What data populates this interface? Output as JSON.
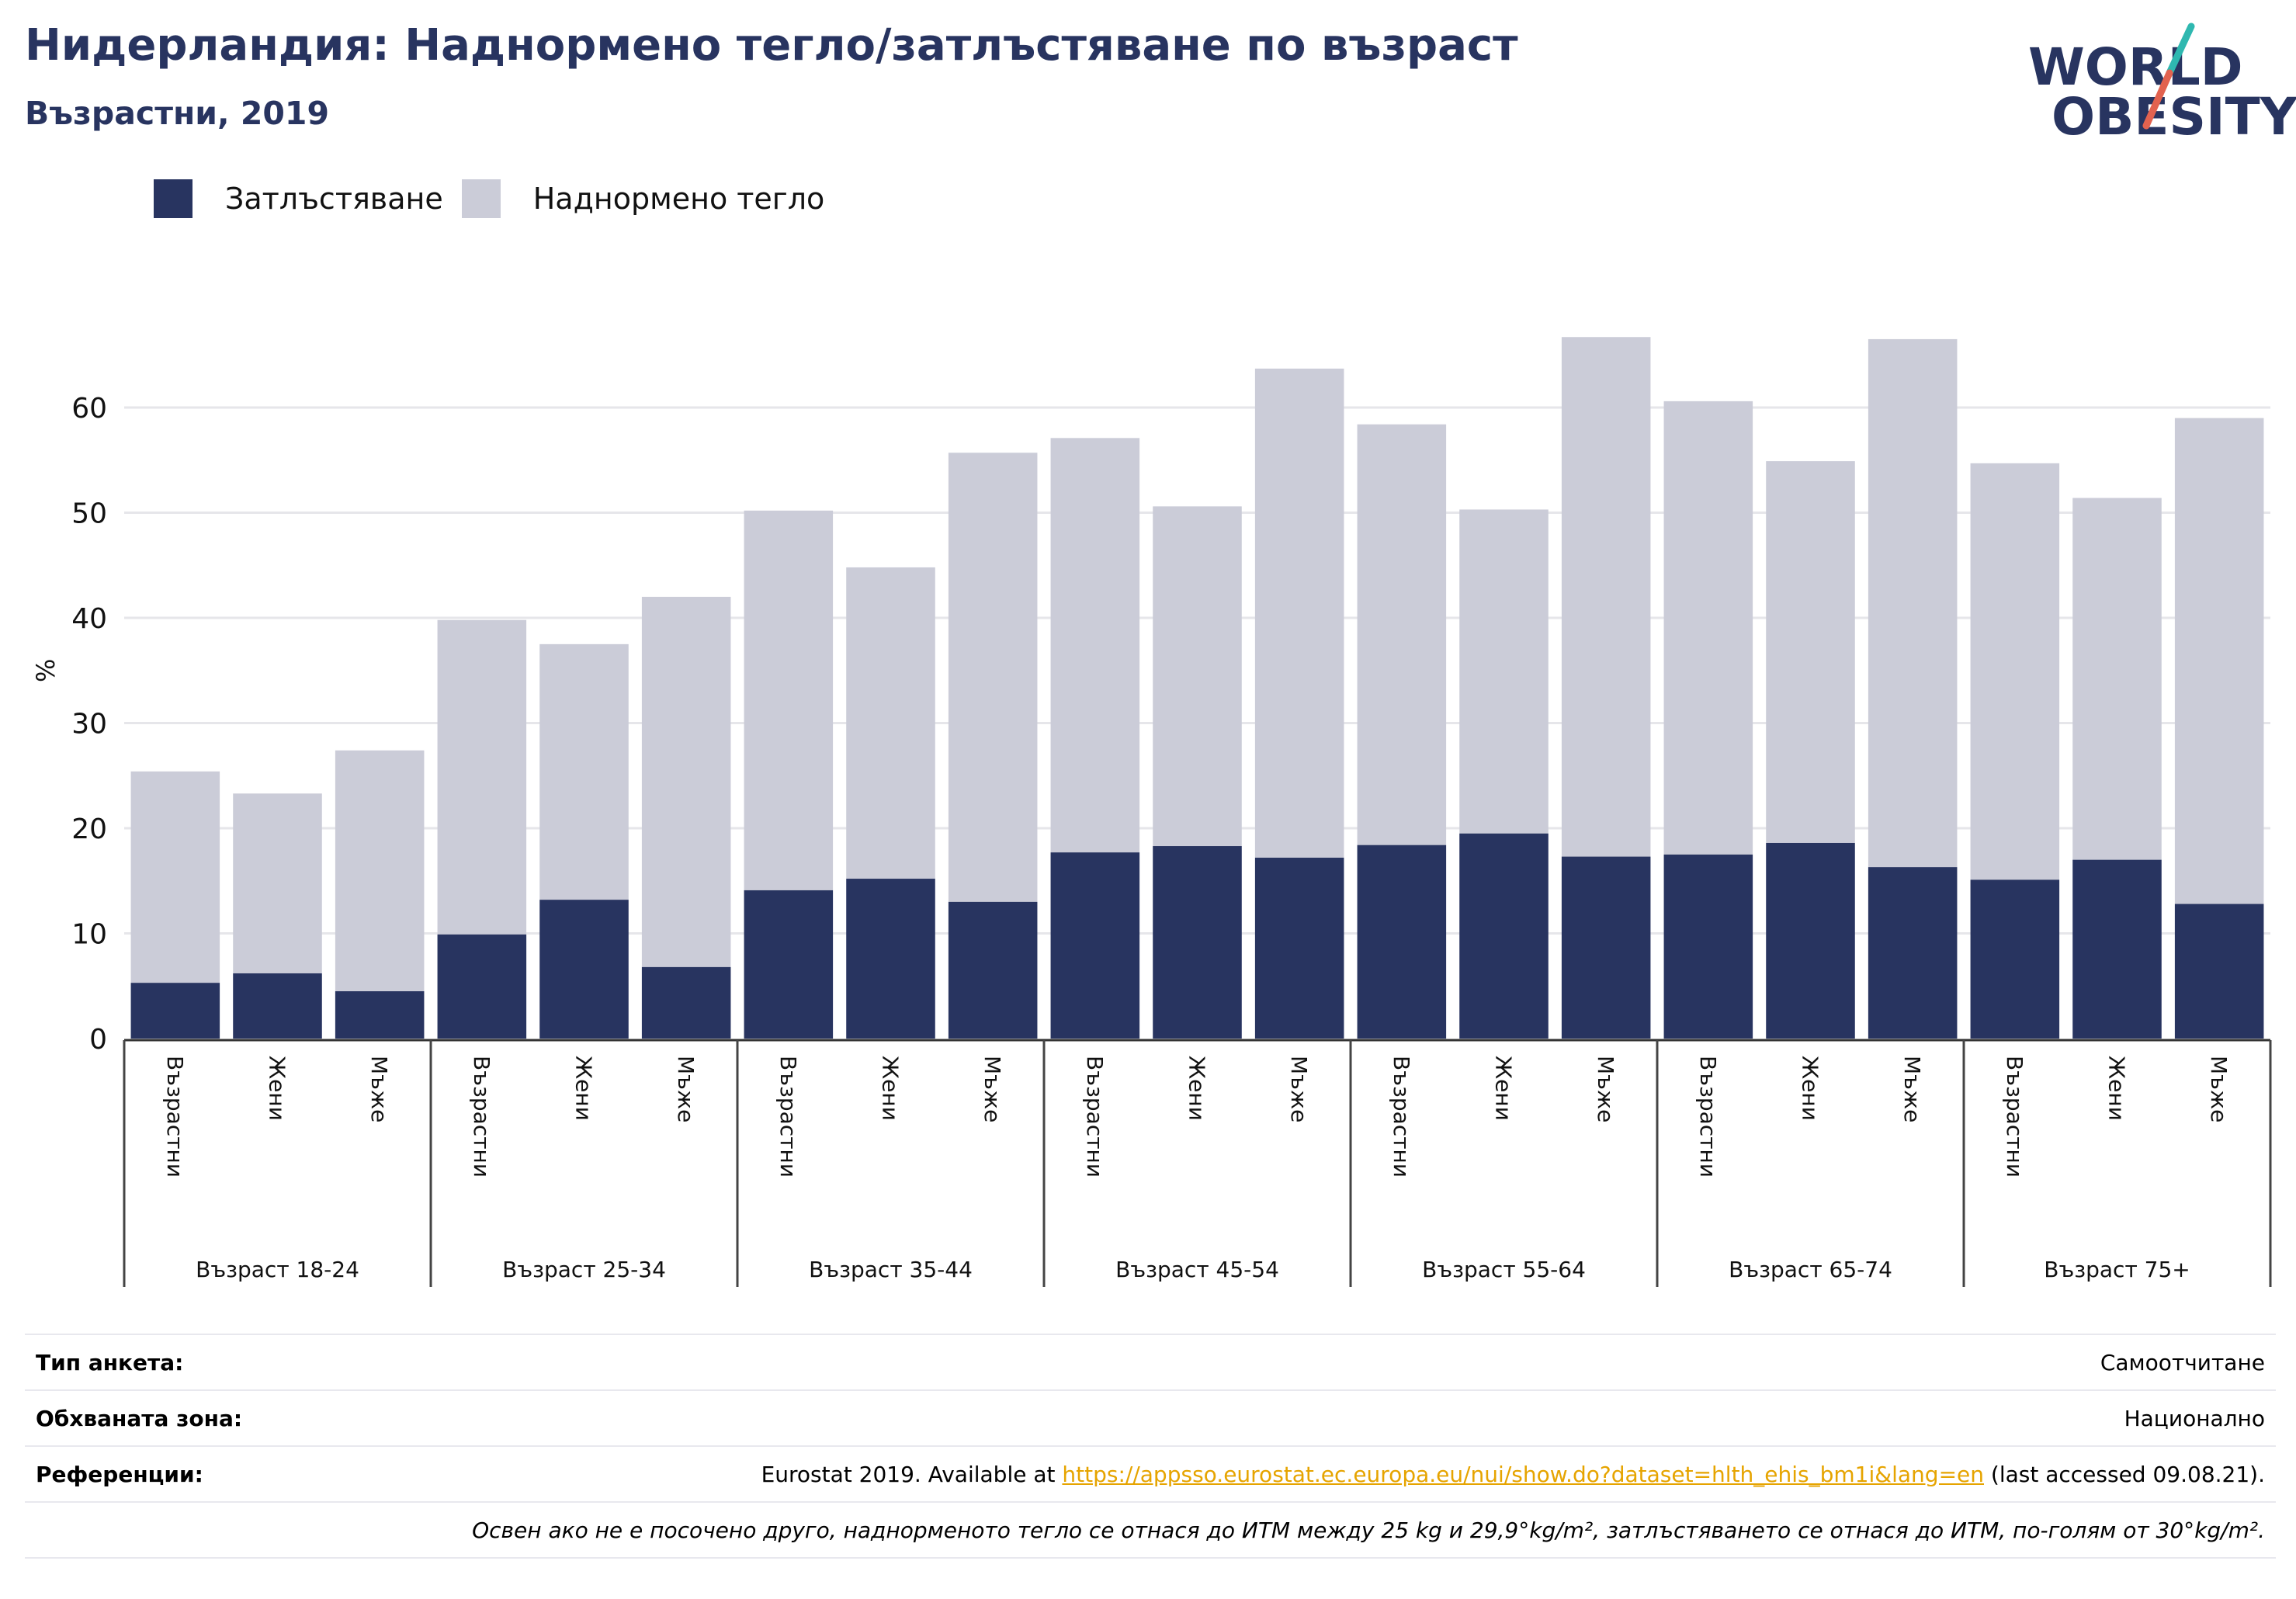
{
  "title": "Нидерландия: Наднормено тегло/затлъстяване по възраст",
  "subtitle": "Възрастни, 2019",
  "logo": {
    "line1": "WORLD",
    "line2": "OBESITY"
  },
  "colors": {
    "obesity": "#283460",
    "overweight": "#cbccd8",
    "title": "#283460",
    "link": "#e6a400",
    "logo_slash_red": "#e2624f",
    "logo_slash_teal": "#2fb8b0"
  },
  "chart_data": {
    "type": "bar",
    "stacked": true,
    "ylabel": "%",
    "ylim": [
      0,
      70
    ],
    "yticks": [
      0,
      10,
      20,
      30,
      40,
      50,
      60
    ],
    "grid": true,
    "legend_position": "top-left",
    "groups": [
      "Възраст 18-24",
      "Възраст 25-34",
      "Възраст 35-44",
      "Възраст 45-54",
      "Възраст 55-64",
      "Възраст 65-74",
      "Възраст 75+"
    ],
    "subcategories": [
      "Възрастни",
      "Жени",
      "Мъже"
    ],
    "series": [
      {
        "name": "Затлъстяване",
        "color": "#283460",
        "values": [
          5.3,
          6.2,
          4.5,
          9.9,
          13.2,
          6.8,
          14.1,
          15.2,
          13.0,
          17.7,
          18.3,
          17.2,
          18.4,
          19.5,
          17.3,
          17.5,
          18.6,
          16.3,
          15.1,
          17.0,
          12.8
        ]
      },
      {
        "name": "Наднормено тегло",
        "color": "#cbccd8",
        "values": [
          20.1,
          17.1,
          22.9,
          29.9,
          24.3,
          35.2,
          36.1,
          29.6,
          42.7,
          39.4,
          32.3,
          46.5,
          40.0,
          30.8,
          49.4,
          43.1,
          36.3,
          50.2,
          39.6,
          34.4,
          46.2
        ]
      }
    ]
  },
  "footer": {
    "survey_label": "Тип анкета:",
    "survey_value": "Самоотчитане",
    "area_label": "Обхваната зона:",
    "area_value": "Национално",
    "ref_label": "Референции:",
    "ref_prefix": "Eurostat 2019. Available at ",
    "ref_link": "https://appsso.eurostat.ec.europa.eu/nui/show.do?dataset=hlth_ehis_bm1i&lang=en",
    "ref_suffix": " (last accessed 09.08.21).",
    "note": "Освен ако не е посочено друго, наднорменото тегло се отнася до ИТМ между 25 kg и 29,9°kg/m², затлъстяването се отнася до ИТМ, по-голям от 30°kg/m²."
  }
}
